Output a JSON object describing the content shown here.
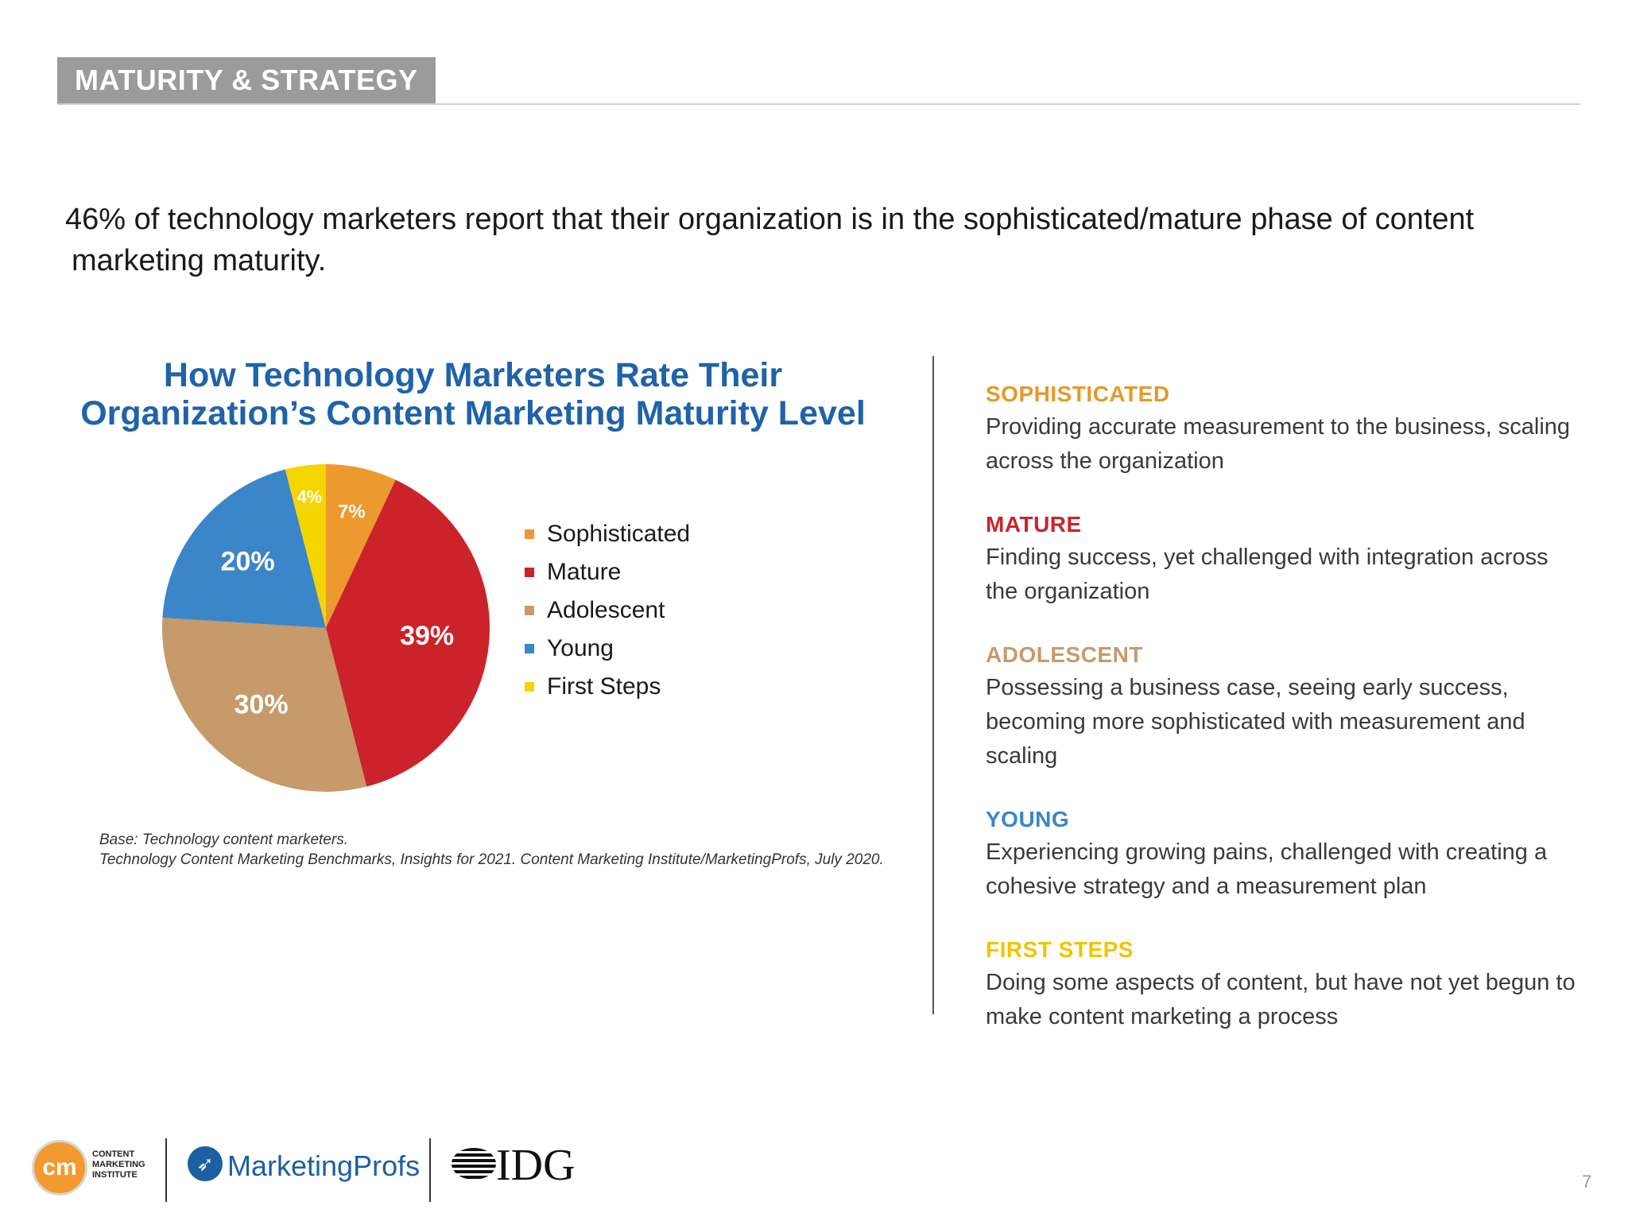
{
  "header": {
    "section_label": "MATURITY & STRATEGY"
  },
  "headline": {
    "line1": "46% of technology marketers report that their organization is in the sophisticated/mature phase of content",
    "line2": "marketing maturity."
  },
  "chart_data": {
    "type": "pie",
    "title": "How Technology Marketers Rate Their Organization’s Content Marketing Maturity Level",
    "title_lines": [
      "How Technology Marketers Rate Their",
      "Organization’s Content Marketing Maturity Level"
    ],
    "categories": [
      "Sophisticated",
      "Mature",
      "Adolescent",
      "Young",
      "First Steps"
    ],
    "values": [
      7,
      39,
      30,
      20,
      4
    ],
    "labels": [
      "7%",
      "39%",
      "30%",
      "20%",
      "4%"
    ],
    "colors": [
      "#ec9a2d",
      "#cc2229",
      "#c69a6a",
      "#3a86c8",
      "#f4d500"
    ],
    "legend_position": "right"
  },
  "source": {
    "line1": "Base: Technology content marketers.",
    "line2": "Technology Content Marketing Benchmarks, Insights for 2021. Content Marketing Institute/MarketingProfs, July 2020."
  },
  "definitions": [
    {
      "term": "SOPHISTICATED",
      "color": "#e39a2b",
      "desc_lines": [
        "Providing accurate measurement to the business, scaling",
        "across the organization"
      ]
    },
    {
      "term": "MATURE",
      "color": "#c9242b",
      "desc_lines": [
        "Finding success, yet challenged with integration across",
        "the organization"
      ]
    },
    {
      "term": "ADOLESCENT",
      "color": "#c69a6a",
      "desc_lines": [
        "Possessing a business case, seeing early success,",
        "becoming more sophisticated with measurement and",
        "scaling"
      ]
    },
    {
      "term": "YOUNG",
      "color": "#3a86c8",
      "desc_lines": [
        "Experiencing growing pains, challenged with creating a",
        "cohesive strategy and a measurement plan"
      ]
    },
    {
      "term": "FIRST STEPS",
      "color": "#f2c400",
      "desc_lines": [
        "Doing some aspects of content, but have not yet begun to",
        "make content marketing a process"
      ]
    }
  ],
  "footer": {
    "cmi_mark": "cm",
    "cmi_text": [
      "CONTENT",
      "MARKETING",
      "INSTITUTE"
    ],
    "marketingprofs": "MarketingProfs",
    "idg": "IDG",
    "page_number": "7"
  },
  "icons": {
    "marketingprofs": "target-arrow-icon",
    "idg": "striped-globe-icon"
  }
}
